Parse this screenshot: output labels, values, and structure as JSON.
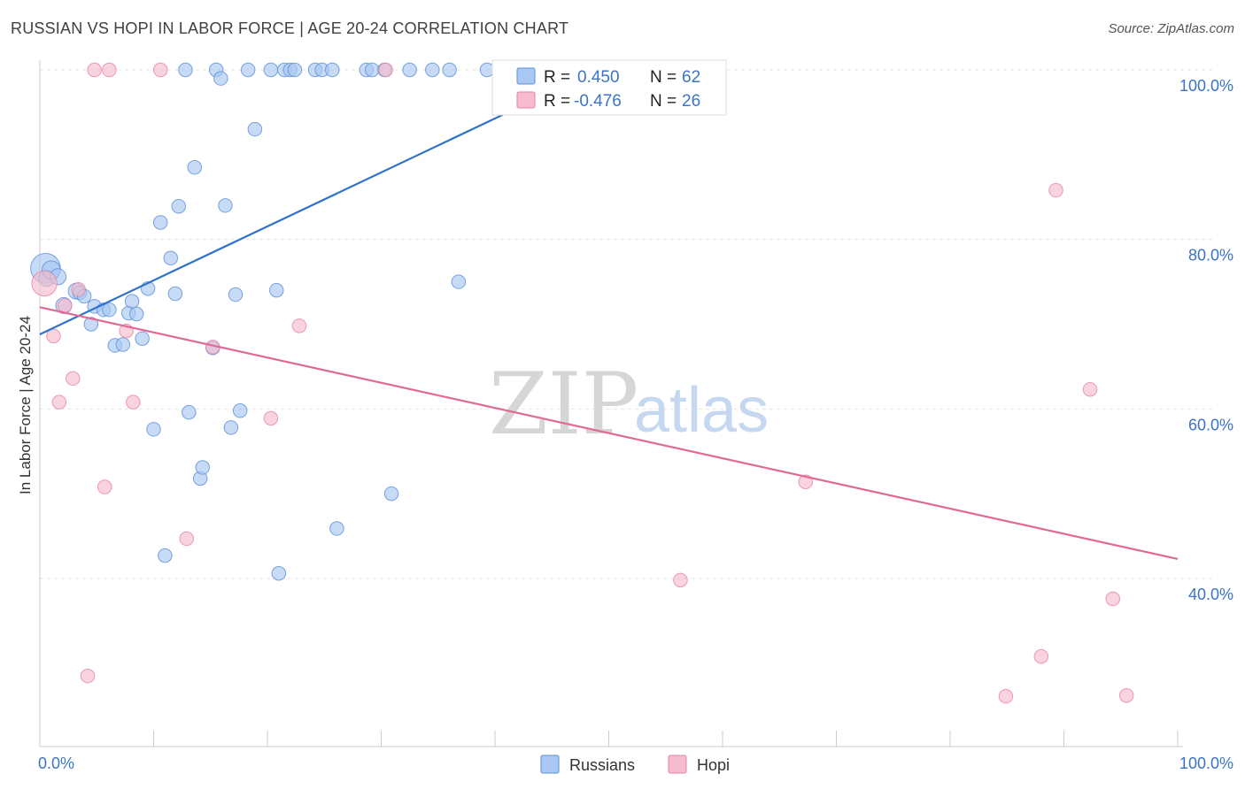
{
  "header": {
    "title": "RUSSIAN VS HOPI IN LABOR FORCE | AGE 20-24 CORRELATION CHART",
    "source": "Source: ZipAtlas.com"
  },
  "watermark": {
    "zip": "ZIP",
    "atlas": "atlas"
  },
  "stats": {
    "r_label": "R =",
    "n_label": "N =",
    "rows": [
      {
        "r": "0.450",
        "n": "62",
        "color": "#a9c8f3"
      },
      {
        "r": "-0.476",
        "n": "26",
        "color": "#f6bccd"
      }
    ]
  },
  "legend": [
    "Russians",
    "Hopi"
  ],
  "chart_data": {
    "type": "scatter",
    "title": "RUSSIAN VS HOPI IN LABOR FORCE | AGE 20-24 CORRELATION CHART",
    "xlabel": "",
    "ylabel": "In Labor Force | Age 20-24",
    "xlim": [
      0,
      100
    ],
    "ylim": [
      20,
      103
    ],
    "x_tick_labels": [
      "0.0%",
      "100.0%"
    ],
    "y_ticks": [
      40,
      60,
      80,
      100
    ],
    "y_tick_labels": [
      "40.0%",
      "60.0%",
      "80.0%",
      "100.0%"
    ],
    "grid": true,
    "legend_position": "bottom-center",
    "series": [
      {
        "name": "Russians",
        "color": "#a9c8f3",
        "stroke": "#5b8fd6",
        "trend_color": "#2e72cc",
        "trend": {
          "x": [
            0.0,
            49.0
          ],
          "y": [
            68.8,
            100.0
          ]
        },
        "points": [
          [
            0.5,
            76.6,
            26
          ],
          [
            0.6,
            75.4,
            14
          ],
          [
            1.0,
            76.4,
            16
          ],
          [
            1.6,
            75.6,
            14
          ],
          [
            2.1,
            72.2,
            14
          ],
          [
            3.2,
            73.9,
            14
          ],
          [
            3.5,
            73.7,
            12
          ],
          [
            3.9,
            73.3,
            12
          ],
          [
            4.5,
            70.0,
            12
          ],
          [
            4.8,
            72.1,
            12
          ],
          [
            5.6,
            71.7,
            12
          ],
          [
            6.1,
            71.7,
            12
          ],
          [
            6.6,
            67.5,
            12
          ],
          [
            7.3,
            67.6,
            12
          ],
          [
            7.8,
            71.3,
            12
          ],
          [
            8.1,
            72.7,
            12
          ],
          [
            8.5,
            71.2,
            12
          ],
          [
            9.0,
            68.3,
            12
          ],
          [
            9.5,
            74.2,
            12
          ],
          [
            10.0,
            57.6,
            12
          ],
          [
            10.6,
            82.0,
            12
          ],
          [
            11.0,
            42.7,
            12
          ],
          [
            11.5,
            77.8,
            12
          ],
          [
            11.9,
            73.6,
            12
          ],
          [
            12.2,
            83.9,
            12
          ],
          [
            12.8,
            100.0,
            12
          ],
          [
            13.1,
            59.6,
            12
          ],
          [
            13.6,
            88.5,
            12
          ],
          [
            14.1,
            51.8,
            12
          ],
          [
            14.3,
            53.1,
            12
          ],
          [
            15.2,
            67.2,
            12
          ],
          [
            15.5,
            100.0,
            12
          ],
          [
            15.9,
            99.0,
            12
          ],
          [
            16.3,
            84.0,
            12
          ],
          [
            16.8,
            57.8,
            12
          ],
          [
            17.2,
            73.5,
            12
          ],
          [
            17.6,
            59.8,
            12
          ],
          [
            18.3,
            100.0,
            12
          ],
          [
            18.9,
            93.0,
            12
          ],
          [
            20.3,
            100.0,
            12
          ],
          [
            20.8,
            74.0,
            12
          ],
          [
            21.0,
            40.6,
            12
          ],
          [
            21.5,
            100.0,
            12
          ],
          [
            22.0,
            100.0,
            12
          ],
          [
            22.4,
            100.0,
            12
          ],
          [
            24.2,
            100.0,
            12
          ],
          [
            24.8,
            100.0,
            12
          ],
          [
            25.7,
            100.0,
            12
          ],
          [
            26.1,
            45.9,
            12
          ],
          [
            28.7,
            100.0,
            12
          ],
          [
            29.2,
            100.0,
            12
          ],
          [
            30.3,
            100.0,
            12
          ],
          [
            30.9,
            50.0,
            12
          ],
          [
            32.5,
            100.0,
            12
          ],
          [
            34.5,
            100.0,
            12
          ],
          [
            36.0,
            100.0,
            12
          ],
          [
            36.8,
            75.0,
            12
          ],
          [
            39.3,
            100.0,
            12
          ],
          [
            42.0,
            100.0,
            12
          ],
          [
            45.0,
            100.0,
            12
          ],
          [
            49.1,
            100.0,
            12
          ],
          [
            59.2,
            100.0,
            12
          ]
        ]
      },
      {
        "name": "Hopi",
        "color": "#f6bccd",
        "stroke": "#e585a3",
        "trend_color": "#e06a95",
        "trend": {
          "x": [
            0.0,
            100.0
          ],
          "y": [
            72.0,
            42.3
          ]
        },
        "points": [
          [
            0.4,
            74.8,
            22
          ],
          [
            1.2,
            68.6,
            12
          ],
          [
            1.7,
            60.8,
            12
          ],
          [
            2.2,
            72.2,
            12
          ],
          [
            2.9,
            63.6,
            12
          ],
          [
            3.4,
            74.1,
            12
          ],
          [
            4.2,
            28.5,
            12
          ],
          [
            4.8,
            100.0,
            12
          ],
          [
            5.7,
            50.8,
            12
          ],
          [
            6.1,
            100.0,
            12
          ],
          [
            7.6,
            69.2,
            12
          ],
          [
            8.2,
            60.8,
            12
          ],
          [
            10.6,
            100.0,
            12
          ],
          [
            12.9,
            44.7,
            12
          ],
          [
            15.2,
            67.3,
            12
          ],
          [
            20.3,
            58.9,
            12
          ],
          [
            22.8,
            69.8,
            12
          ],
          [
            30.4,
            100.0,
            12
          ],
          [
            67.3,
            51.4,
            12
          ],
          [
            56.3,
            39.8,
            12
          ],
          [
            89.3,
            85.8,
            12
          ],
          [
            92.3,
            62.3,
            12
          ],
          [
            94.3,
            37.6,
            12
          ],
          [
            88.0,
            30.8,
            12
          ],
          [
            84.9,
            26.1,
            12
          ],
          [
            95.5,
            26.2,
            12
          ]
        ]
      }
    ]
  }
}
